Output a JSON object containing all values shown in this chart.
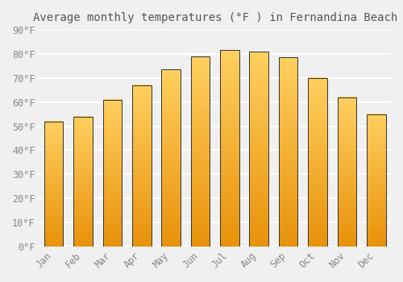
{
  "title": "Average monthly temperatures (°F ) in Fernandina Beach",
  "months": [
    "Jan",
    "Feb",
    "Mar",
    "Apr",
    "May",
    "Jun",
    "Jul",
    "Aug",
    "Sep",
    "Oct",
    "Nov",
    "Dec"
  ],
  "values": [
    52,
    54,
    61,
    67,
    73.5,
    79,
    81.5,
    81,
    78.5,
    70,
    62,
    55
  ],
  "color_bottom": "#E8920A",
  "color_top": "#FFD060",
  "bar_edge_color": "#333333",
  "ylim": [
    0,
    90
  ],
  "yticks": [
    0,
    10,
    20,
    30,
    40,
    50,
    60,
    70,
    80,
    90
  ],
  "ytick_labels": [
    "0°F",
    "10°F",
    "20°F",
    "30°F",
    "40°F",
    "50°F",
    "60°F",
    "70°F",
    "80°F",
    "90°F"
  ],
  "background_color": "#F0F0F0",
  "grid_color": "#FFFFFF",
  "title_fontsize": 10,
  "tick_fontsize": 8.5,
  "font_family": "monospace"
}
